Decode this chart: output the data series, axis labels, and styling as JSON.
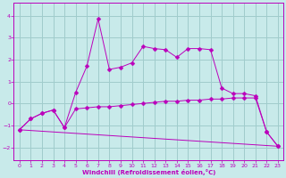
{
  "xlabel": "Windchill (Refroidissement éolien,°C)",
  "background_color": "#c8eaea",
  "grid_color": "#a0cccc",
  "line_color": "#bb00bb",
  "xlim": [
    -0.5,
    23.5
  ],
  "ylim": [
    -2.6,
    4.6
  ],
  "yticks": [
    -2,
    -1,
    0,
    1,
    2,
    3,
    4
  ],
  "xticks": [
    0,
    1,
    2,
    3,
    4,
    5,
    6,
    7,
    8,
    9,
    10,
    11,
    12,
    13,
    14,
    15,
    16,
    17,
    18,
    19,
    20,
    21,
    22,
    23
  ],
  "series1_x": [
    0,
    1,
    2,
    3,
    4,
    5,
    6,
    7,
    8,
    9,
    10,
    11,
    12,
    13,
    14,
    15,
    16,
    17,
    18,
    19,
    20,
    21,
    22,
    23
  ],
  "series1_y": [
    -1.2,
    -0.7,
    -0.45,
    -0.3,
    -1.1,
    0.5,
    1.7,
    3.85,
    1.55,
    1.65,
    1.85,
    2.6,
    2.5,
    2.45,
    2.1,
    2.5,
    2.5,
    2.45,
    0.7,
    0.45,
    0.45,
    0.35,
    -1.3,
    -1.95
  ],
  "series2_x": [
    0,
    1,
    2,
    3,
    4,
    5,
    6,
    7,
    8,
    9,
    10,
    11,
    12,
    13,
    14,
    15,
    16,
    17,
    18,
    19,
    20,
    21,
    22,
    23
  ],
  "series2_y": [
    -1.2,
    -0.7,
    -0.45,
    -0.3,
    -1.1,
    -0.25,
    -0.2,
    -0.15,
    -0.15,
    -0.1,
    -0.05,
    0.0,
    0.05,
    0.1,
    0.1,
    0.15,
    0.15,
    0.2,
    0.2,
    0.25,
    0.25,
    0.25,
    -1.3,
    -1.95
  ],
  "series3_x": [
    0,
    23
  ],
  "series3_y": [
    -1.2,
    -1.95
  ],
  "markersize": 2.5
}
